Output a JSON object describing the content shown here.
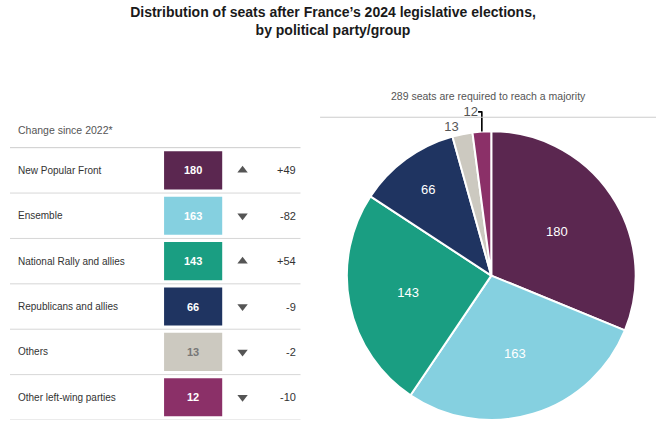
{
  "chart_data": [
    {
      "type": "table",
      "title": "Change since 2022*",
      "categories": [
        "New Popular Front",
        "Ensemble",
        "National Rally and allies",
        "Republicans and allies",
        "Others",
        "Other left-wing parties"
      ],
      "values": [
        180,
        163,
        143,
        66,
        13,
        12
      ],
      "colors": [
        "#5b2750",
        "#85d0e0",
        "#1a9e82",
        "#1f3461",
        "#ccc9c0",
        "#8b3068"
      ],
      "change_values": [
        49,
        -82,
        54,
        -9,
        -2,
        -10
      ],
      "change_labels": [
        "+49",
        "-82",
        "+54",
        "-9",
        "-2",
        "-10"
      ]
    },
    {
      "type": "pie",
      "title": [
        "Distribution of seats after France’s 2024 legislative elections,",
        "by political party/group"
      ],
      "subtitle": "289 seats are required to reach a majority",
      "categories": [
        "New Popular Front",
        "Ensemble",
        "National Rally and allies",
        "Republicans and allies",
        "Others",
        "Other left-wing parties"
      ],
      "values": [
        180,
        163,
        143,
        66,
        13,
        12
      ],
      "colors": [
        "#5b2750",
        "#85d0e0",
        "#1a9e82",
        "#1f3461",
        "#ccc9c0",
        "#8b3068"
      ],
      "data_labels": true
    }
  ]
}
